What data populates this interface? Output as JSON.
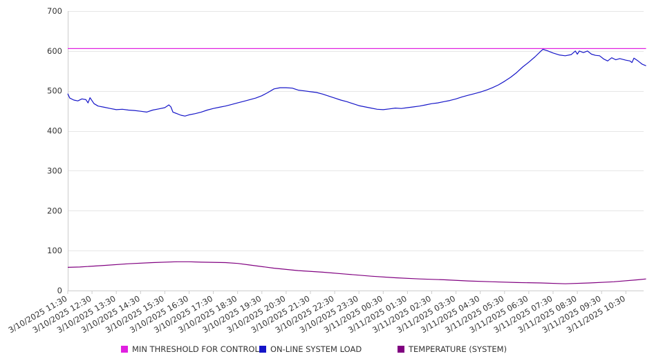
{
  "chart_data": {
    "type": "line",
    "yticks": [
      0,
      100,
      200,
      300,
      400,
      500,
      600,
      700
    ],
    "ylim": [
      0,
      700
    ],
    "xlim": [
      "3/10/2025 11:30",
      "3/11/2025 11:20"
    ],
    "x_tick_labels": [
      "3/10/2025 11:30",
      "3/10/2025 12:30",
      "3/10/2025 13:30",
      "3/10/2025 14:30",
      "3/10/2025 15:30",
      "3/10/2025 16:30",
      "3/10/2025 17:30",
      "3/10/2025 18:30",
      "3/10/2025 19:30",
      "3/10/2025 20:30",
      "3/10/2025 21:30",
      "3/10/2025 22:30",
      "3/10/2025 23:30",
      "3/11/2025 00:30",
      "3/11/2025 01:30",
      "3/11/2025 02:30",
      "3/11/2025 03:30",
      "3/11/2025 04:30",
      "3/11/2025 05:30",
      "3/11/2025 06:30",
      "3/11/2025 07:30",
      "3/11/2025 08:30",
      "3/11/2025 09:30",
      "3/11/2025 10:30"
    ],
    "grid": true,
    "legend_position": "bottom",
    "series": [
      {
        "name": "MIN THRESHOLD FOR CONTROL",
        "color": "#e020e0",
        "style": "constant",
        "points": [
          [
            "3/10/2025 11:30",
            606
          ],
          [
            "3/11/2025 11:20",
            606
          ]
        ]
      },
      {
        "name": "ON-LINE SYSTEM LOAD",
        "color": "#1515c8",
        "points": [
          [
            "3/10/2025 11:30",
            493
          ],
          [
            "3/10/2025 11:35",
            482
          ],
          [
            "3/10/2025 11:45",
            477
          ],
          [
            "3/10/2025 11:55",
            475
          ],
          [
            "3/10/2025 12:05",
            480
          ],
          [
            "3/10/2025 12:15",
            478
          ],
          [
            "3/10/2025 12:20",
            470
          ],
          [
            "3/10/2025 12:25",
            483
          ],
          [
            "3/10/2025 12:35",
            468
          ],
          [
            "3/10/2025 12:45",
            462
          ],
          [
            "3/10/2025 13:00",
            459
          ],
          [
            "3/10/2025 13:15",
            456
          ],
          [
            "3/10/2025 13:30",
            453
          ],
          [
            "3/10/2025 13:45",
            454
          ],
          [
            "3/10/2025 14:00",
            452
          ],
          [
            "3/10/2025 14:15",
            451
          ],
          [
            "3/10/2025 14:30",
            449
          ],
          [
            "3/10/2025 14:45",
            447
          ],
          [
            "3/10/2025 15:00",
            452
          ],
          [
            "3/10/2025 15:15",
            455
          ],
          [
            "3/10/2025 15:30",
            458
          ],
          [
            "3/10/2025 15:40",
            465
          ],
          [
            "3/10/2025 15:45",
            460
          ],
          [
            "3/10/2025 15:50",
            447
          ],
          [
            "3/10/2025 16:00",
            443
          ],
          [
            "3/10/2025 16:10",
            439
          ],
          [
            "3/10/2025 16:20",
            437
          ],
          [
            "3/10/2025 16:30",
            440
          ],
          [
            "3/10/2025 16:45",
            443
          ],
          [
            "3/10/2025 17:00",
            447
          ],
          [
            "3/10/2025 17:15",
            452
          ],
          [
            "3/10/2025 17:30",
            456
          ],
          [
            "3/10/2025 17:45",
            459
          ],
          [
            "3/10/2025 18:00",
            462
          ],
          [
            "3/10/2025 18:15",
            466
          ],
          [
            "3/10/2025 18:30",
            470
          ],
          [
            "3/10/2025 18:45",
            474
          ],
          [
            "3/10/2025 19:00",
            478
          ],
          [
            "3/10/2025 19:15",
            482
          ],
          [
            "3/10/2025 19:30",
            488
          ],
          [
            "3/10/2025 19:45",
            496
          ],
          [
            "3/10/2025 20:00",
            505
          ],
          [
            "3/10/2025 20:15",
            508
          ],
          [
            "3/10/2025 20:30",
            508
          ],
          [
            "3/10/2025 20:45",
            507
          ],
          [
            "3/10/2025 21:00",
            502
          ],
          [
            "3/10/2025 21:15",
            500
          ],
          [
            "3/10/2025 21:30",
            498
          ],
          [
            "3/10/2025 21:45",
            496
          ],
          [
            "3/10/2025 22:00",
            492
          ],
          [
            "3/10/2025 22:15",
            487
          ],
          [
            "3/10/2025 22:30",
            482
          ],
          [
            "3/10/2025 22:45",
            477
          ],
          [
            "3/10/2025 23:00",
            473
          ],
          [
            "3/10/2025 23:15",
            468
          ],
          [
            "3/10/2025 23:30",
            463
          ],
          [
            "3/10/2025 23:45",
            460
          ],
          [
            "3/11/2025 00:00",
            457
          ],
          [
            "3/11/2025 00:15",
            454
          ],
          [
            "3/11/2025 00:30",
            453
          ],
          [
            "3/11/2025 00:45",
            455
          ],
          [
            "3/11/2025 01:00",
            457
          ],
          [
            "3/11/2025 01:15",
            456
          ],
          [
            "3/11/2025 01:30",
            458
          ],
          [
            "3/11/2025 01:45",
            460
          ],
          [
            "3/11/2025 02:00",
            462
          ],
          [
            "3/11/2025 02:15",
            465
          ],
          [
            "3/11/2025 02:30",
            468
          ],
          [
            "3/11/2025 02:45",
            470
          ],
          [
            "3/11/2025 03:00",
            473
          ],
          [
            "3/11/2025 03:15",
            476
          ],
          [
            "3/11/2025 03:30",
            480
          ],
          [
            "3/11/2025 03:45",
            485
          ],
          [
            "3/11/2025 04:00",
            489
          ],
          [
            "3/11/2025 04:15",
            493
          ],
          [
            "3/11/2025 04:30",
            497
          ],
          [
            "3/11/2025 04:45",
            502
          ],
          [
            "3/11/2025 05:00",
            508
          ],
          [
            "3/11/2025 05:15",
            515
          ],
          [
            "3/11/2025 05:30",
            524
          ],
          [
            "3/11/2025 05:45",
            534
          ],
          [
            "3/11/2025 06:00",
            546
          ],
          [
            "3/11/2025 06:15",
            560
          ],
          [
            "3/11/2025 06:30",
            572
          ],
          [
            "3/11/2025 06:45",
            585
          ],
          [
            "3/11/2025 07:00",
            600
          ],
          [
            "3/11/2025 07:05",
            604
          ],
          [
            "3/11/2025 07:15",
            601
          ],
          [
            "3/11/2025 07:30",
            595
          ],
          [
            "3/11/2025 07:45",
            590
          ],
          [
            "3/11/2025 08:00",
            588
          ],
          [
            "3/11/2025 08:15",
            591
          ],
          [
            "3/11/2025 08:25",
            600
          ],
          [
            "3/11/2025 08:30",
            592
          ],
          [
            "3/11/2025 08:35",
            600
          ],
          [
            "3/11/2025 08:45",
            596
          ],
          [
            "3/11/2025 08:55",
            600
          ],
          [
            "3/11/2025 09:05",
            592
          ],
          [
            "3/11/2025 09:15",
            589
          ],
          [
            "3/11/2025 09:25",
            588
          ],
          [
            "3/11/2025 09:35",
            580
          ],
          [
            "3/11/2025 09:45",
            575
          ],
          [
            "3/11/2025 09:55",
            583
          ],
          [
            "3/11/2025 10:05",
            578
          ],
          [
            "3/11/2025 10:15",
            581
          ],
          [
            "3/11/2025 10:30",
            577
          ],
          [
            "3/11/2025 10:40",
            575
          ],
          [
            "3/11/2025 10:45",
            571
          ],
          [
            "3/11/2025 10:50",
            582
          ],
          [
            "3/11/2025 11:00",
            575
          ],
          [
            "3/11/2025 11:10",
            567
          ],
          [
            "3/11/2025 11:20",
            563
          ]
        ]
      },
      {
        "name": "TEMPERATURE (SYSTEM)",
        "color": "#800080",
        "points": [
          [
            "3/10/2025 11:30",
            58
          ],
          [
            "3/10/2025 12:00",
            59
          ],
          [
            "3/10/2025 13:00",
            63
          ],
          [
            "3/10/2025 14:00",
            67
          ],
          [
            "3/10/2025 15:00",
            70
          ],
          [
            "3/10/2025 16:00",
            72
          ],
          [
            "3/10/2025 16:30",
            72
          ],
          [
            "3/10/2025 17:00",
            71
          ],
          [
            "3/10/2025 18:00",
            70
          ],
          [
            "3/10/2025 18:30",
            68
          ],
          [
            "3/10/2025 19:00",
            64
          ],
          [
            "3/10/2025 20:00",
            56
          ],
          [
            "3/10/2025 21:00",
            50
          ],
          [
            "3/10/2025 22:00",
            46
          ],
          [
            "3/10/2025 23:00",
            41
          ],
          [
            "3/11/2025 00:00",
            36
          ],
          [
            "3/11/2025 01:00",
            32
          ],
          [
            "3/11/2025 02:00",
            29
          ],
          [
            "3/11/2025 03:00",
            27
          ],
          [
            "3/11/2025 04:00",
            24
          ],
          [
            "3/11/2025 05:00",
            22
          ],
          [
            "3/11/2025 06:00",
            20
          ],
          [
            "3/11/2025 07:00",
            19
          ],
          [
            "3/11/2025 08:00",
            17
          ],
          [
            "3/11/2025 09:00",
            19
          ],
          [
            "3/11/2025 10:00",
            22
          ],
          [
            "3/11/2025 11:00",
            27
          ],
          [
            "3/11/2025 11:20",
            29
          ]
        ]
      }
    ]
  },
  "legend": {
    "items": [
      {
        "label": "MIN THRESHOLD FOR CONTROL",
        "color": "#e020e0"
      },
      {
        "label": "ON-LINE SYSTEM LOAD",
        "color": "#1515c8"
      },
      {
        "label": "TEMPERATURE (SYSTEM)",
        "color": "#800080"
      }
    ]
  }
}
